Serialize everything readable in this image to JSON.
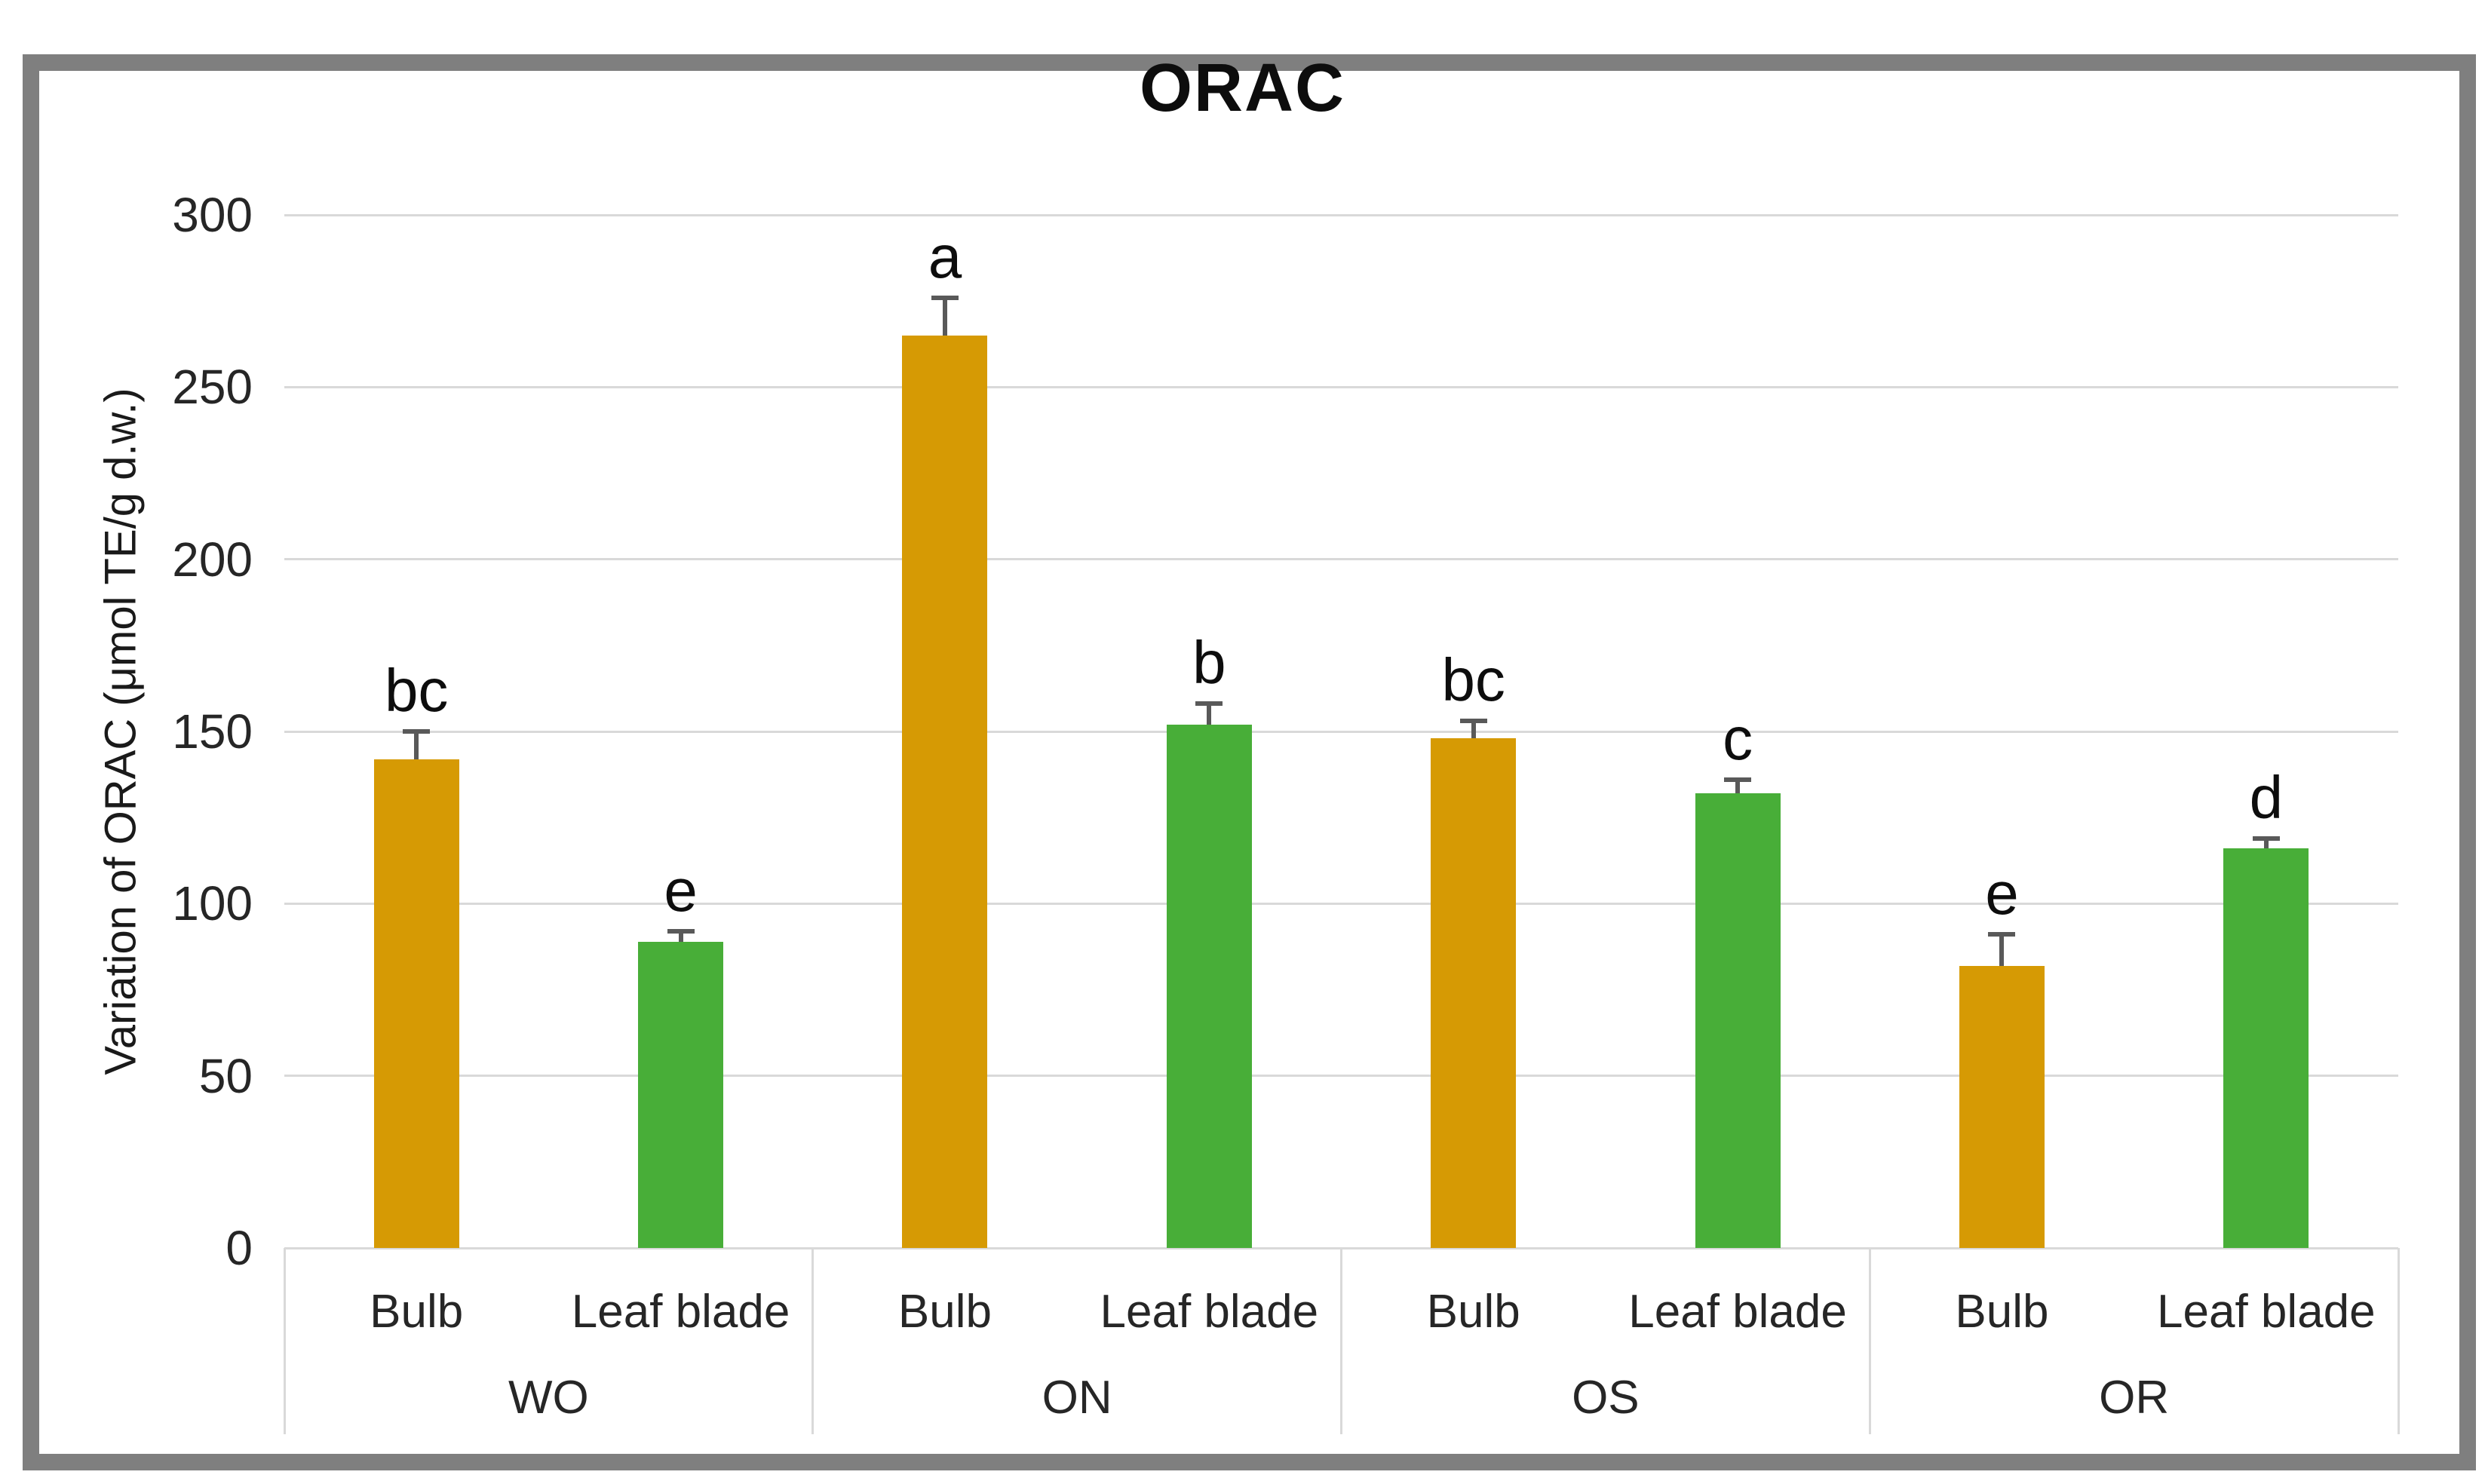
{
  "chart_data": {
    "type": "bar",
    "title": "ORAC",
    "ylabel": "Variation of ORAC (μmol TE/g d.w.)",
    "ylim": [
      0,
      300
    ],
    "ytick_step": 50,
    "yticks": [
      0,
      50,
      100,
      150,
      200,
      250,
      300
    ],
    "grid": true,
    "legend_position": "none",
    "categories": [
      "WO",
      "ON",
      "OS",
      "OR"
    ],
    "subcategories": [
      "Bulb",
      "Leaf blade"
    ],
    "series": [
      {
        "name": "Bulb",
        "color": "#d69a04",
        "values": [
          142,
          265,
          148,
          82
        ],
        "errors": [
          8,
          11,
          5,
          9
        ],
        "letters": [
          "bc",
          "a",
          "bc",
          "e"
        ]
      },
      {
        "name": "Leaf blade",
        "color": "#48ae38",
        "values": [
          89,
          152,
          132,
          116
        ],
        "errors": [
          3,
          6,
          4,
          3
        ],
        "letters": [
          "e",
          "b",
          "c",
          "d"
        ]
      }
    ],
    "colors": {
      "bulb_bar": "#d69a04",
      "leaf_blade_bar": "#48ae38",
      "error_bar": "#595959",
      "gridline": "#d9d9d9",
      "axis_text": "#262626",
      "title_text": "#0d0d0d",
      "frame_border": "#7f7f7f"
    }
  }
}
